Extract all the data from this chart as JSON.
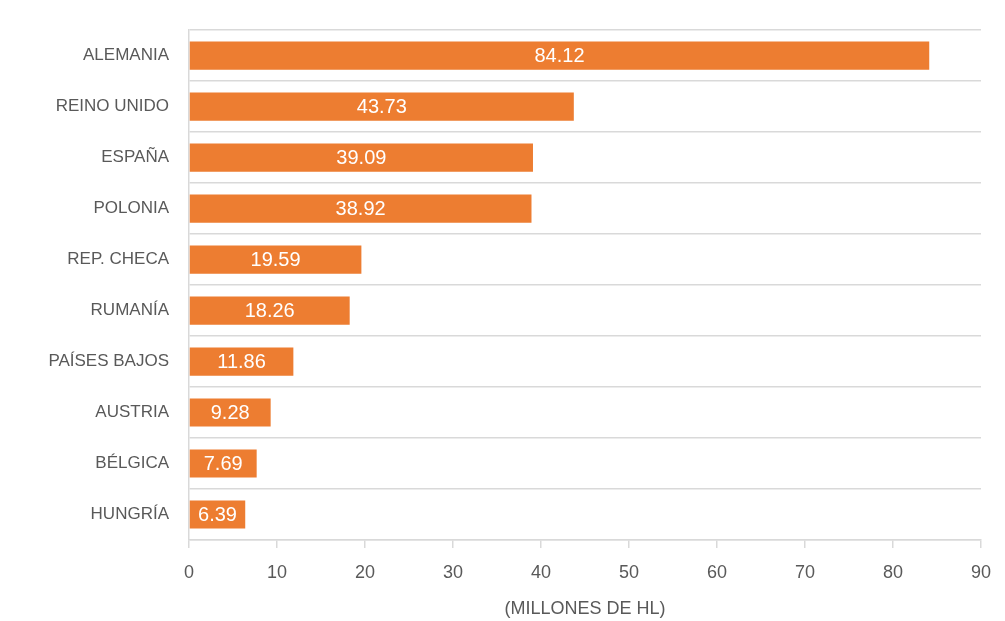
{
  "chart_data": {
    "type": "bar",
    "orientation": "horizontal",
    "xlabel": "(MILLONES DE HL)",
    "categories": [
      "ALEMANIA",
      "REINO UNIDO",
      "ESPAÑA",
      "POLONIA",
      "REP. CHECA",
      "RUMANÍA",
      "PAÍSES BAJOS",
      "AUSTRIA",
      "BÉLGICA",
      "HUNGRÍA"
    ],
    "values": [
      84.12,
      43.73,
      39.09,
      38.92,
      19.59,
      18.26,
      11.86,
      9.28,
      7.69,
      6.39
    ],
    "color": "#ed7d31",
    "xlim": [
      0,
      90
    ],
    "xticks": [
      0,
      10,
      20,
      30,
      40,
      50,
      60,
      70,
      80,
      90
    ],
    "grid": "y",
    "data_labels": true
  }
}
